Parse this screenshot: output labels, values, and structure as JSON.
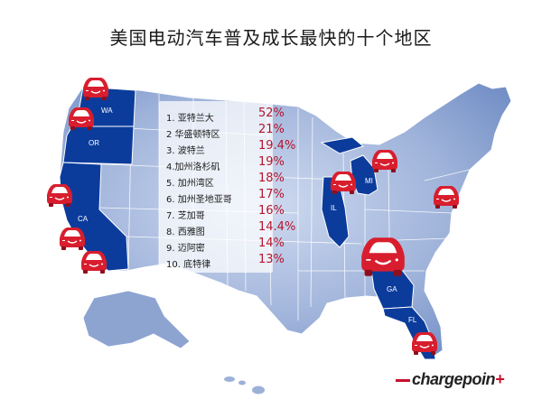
{
  "title": "美国电动汽车普及成长最快的十个地区",
  "ranking": [
    {
      "label": "1. 亚特兰大",
      "pct": "52%"
    },
    {
      "label": "2 华盛顿特区",
      "pct": "21%"
    },
    {
      "label": "3. 波特兰",
      "pct": "19.4%"
    },
    {
      "label": "4.加州洛杉矶",
      "pct": "19%"
    },
    {
      "label": "5. 加州湾区",
      "pct": "18%"
    },
    {
      "label": "6. 加州圣地亚哥",
      "pct": "17%"
    },
    {
      "label": "7. 芝加哥",
      "pct": "16%"
    },
    {
      "label": "8. 西雅图",
      "pct": "14.4%"
    },
    {
      "label": "9. 迈阿密",
      "pct": "14%"
    },
    {
      "label": "10. 底特律",
      "pct": "13%"
    }
  ],
  "state_labels": {
    "wa": "WA",
    "or": "OR",
    "ca": "CA",
    "il": "IL",
    "mi": "MI",
    "ga": "GA",
    "fl": "FL"
  },
  "brand": {
    "name": "chargepoin",
    "suffix": "+"
  },
  "colors": {
    "highlight_state": "#0b3c9c",
    "land": "#93a9d4",
    "land_light": "#c9d5ec",
    "border": "#ffffff",
    "marker": "#d81e2e",
    "percent": "#b3132b"
  },
  "marker_icon": "electric-car-smiley-icon"
}
